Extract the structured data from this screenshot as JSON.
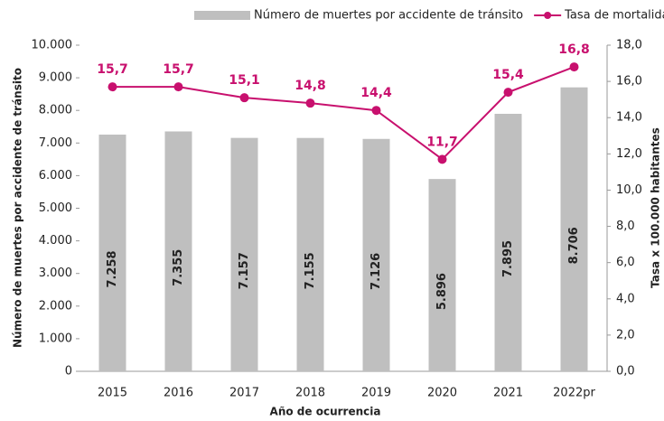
{
  "chart_data": {
    "type": "bar_line",
    "categories": [
      "2015",
      "2016",
      "2017",
      "2018",
      "2019",
      "2020",
      "2021",
      "2022pr"
    ],
    "series": [
      {
        "name": "Número de muertes por accidente de tránsito",
        "color": "#bfbfbf",
        "type": "bar",
        "values": [
          7258,
          7355,
          7157,
          7155,
          7126,
          5896,
          7895,
          8706
        ],
        "value_labels": [
          "7.258",
          "7.355",
          "7.157",
          "7.155",
          "7.126",
          "5.896",
          "7.895",
          "8.706"
        ]
      },
      {
        "name": "Tasa de mortalidad por accidente de tránsito",
        "color": "#c8106e",
        "type": "line",
        "axis": "y2",
        "values": [
          15.7,
          15.7,
          15.1,
          14.8,
          14.4,
          11.7,
          15.4,
          16.8
        ],
        "value_labels": [
          "15,7",
          "15,7",
          "15,1",
          "14,8",
          "14,4",
          "11,7",
          "15,4",
          "16,8"
        ]
      }
    ],
    "xlabel": "Año de ocurrencia",
    "ylabel": "Número de muertes por accidente de tránsito",
    "y2label": "Tasa x 100.000 habitantes",
    "ylim": [
      0,
      10000
    ],
    "yticks": [
      0,
      {
        "value": 1000,
        "label": "1.000"
      },
      {
        "value": 2000,
        "label": "2.000"
      },
      {
        "value": 3000,
        "label": "3.000"
      },
      {
        "value": 4000,
        "label": "4.000"
      },
      {
        "value": 5000,
        "label": "5.000"
      },
      {
        "value": 6000,
        "label": "6.000"
      },
      {
        "value": 7000,
        "label": "7.000"
      },
      {
        "value": 8000,
        "label": "8.000"
      },
      {
        "value": 9000,
        "label": "9.000"
      },
      {
        "value": 10000,
        "label": "10.000"
      }
    ],
    "y2lim": [
      0,
      18
    ],
    "y2ticks": [
      {
        "value": 0,
        "label": "0,0"
      },
      {
        "value": 2,
        "label": "2,0"
      },
      {
        "value": 4,
        "label": "4,0"
      },
      {
        "value": 6,
        "label": "6,0"
      },
      {
        "value": 8,
        "label": "8,0"
      },
      {
        "value": 10,
        "label": "10,0"
      },
      {
        "value": 12,
        "label": "12,0"
      },
      {
        "value": 14,
        "label": "14,0"
      },
      {
        "value": 16,
        "label": "16,0"
      },
      {
        "value": 18,
        "label": "18,0"
      }
    ],
    "legend": "top"
  }
}
